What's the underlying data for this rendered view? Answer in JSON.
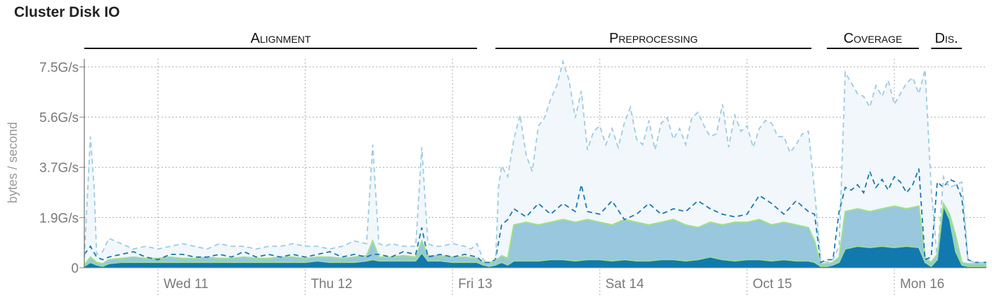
{
  "title": "Cluster Disk IO",
  "colors": {
    "p95_line": "#9dcbe2",
    "p95_fill": "#f1f7fb",
    "p75_line": "#1a78ae",
    "p75_fill": "#98c7de",
    "median_line": "#9ee08a",
    "p25_fill": "#1279ae"
  },
  "chart_data": {
    "type": "area",
    "ylabel": "bytes / second",
    "y_ticks": [
      "0",
      "1.9G/s",
      "3.7G/s",
      "5.6G/s",
      "7.5G/s"
    ],
    "y_tick_values": [
      0,
      1.875,
      3.75,
      5.625,
      7.5
    ],
    "ylim": [
      0,
      7.8
    ],
    "x_range_hours": [
      0,
      147
    ],
    "x_ticks": [
      "Wed 11",
      "Thu 12",
      "Fri 13",
      "Sat 14",
      "Oct 15",
      "Mon 16"
    ],
    "x_tick_hours": [
      12,
      36,
      60,
      84,
      108,
      132
    ],
    "grid": true,
    "phases": [
      {
        "label": "Alignment",
        "start_hour": 0,
        "end_hour": 64
      },
      {
        "label": "Preprocessing",
        "start_hour": 67,
        "end_hour": 118.5
      },
      {
        "label": "Coverage",
        "start_hour": 121,
        "end_hour": 136
      },
      {
        "label": "Dis.",
        "start_hour": 138,
        "end_hour": 143
      }
    ],
    "series": [
      {
        "x": [
          0,
          1,
          1.6,
          2,
          3,
          4,
          6,
          8,
          10,
          12,
          14,
          16,
          18,
          20,
          22,
          24,
          26,
          28,
          30,
          32,
          34,
          36,
          38,
          40,
          42,
          44,
          46,
          47,
          48,
          49,
          50,
          52,
          54,
          55,
          56,
          57,
          58,
          60,
          62,
          63,
          64,
          65,
          66,
          67,
          67.5,
          68,
          69,
          70,
          71,
          72,
          73,
          74,
          75,
          76,
          77,
          78,
          79,
          80,
          81,
          82,
          83,
          84,
          85,
          86,
          87,
          88,
          89,
          90,
          91,
          92,
          93,
          94,
          95,
          96,
          97,
          98,
          99,
          100,
          101,
          102,
          103,
          104,
          105,
          106,
          107,
          108,
          109,
          110,
          111,
          112,
          113,
          114,
          115,
          116,
          117,
          118,
          119,
          120,
          121,
          122,
          123,
          124,
          125,
          126,
          127,
          128,
          129,
          130,
          131,
          132,
          133,
          134,
          135,
          136,
          137,
          138,
          139,
          140,
          141,
          142,
          143,
          144,
          145,
          146,
          147
        ],
        "values": [
          0.4,
          4.9,
          3.0,
          0.5,
          0.6,
          1.1,
          0.9,
          0.7,
          0.8,
          0.7,
          0.8,
          0.9,
          0.8,
          0.7,
          0.9,
          0.8,
          0.8,
          0.7,
          0.8,
          0.8,
          0.9,
          0.8,
          0.8,
          0.7,
          0.8,
          1.0,
          0.9,
          4.6,
          0.9,
          0.8,
          0.9,
          0.8,
          0.8,
          4.5,
          0.9,
          0.8,
          0.8,
          0.9,
          0.8,
          0.7,
          0.9,
          0.3,
          0.1,
          0.1,
          3.0,
          3.8,
          3.4,
          4.8,
          5.7,
          4.2,
          3.6,
          5.3,
          5.6,
          6.3,
          6.8,
          7.7,
          7.0,
          5.6,
          6.6,
          4.4,
          5.1,
          5.3,
          4.6,
          5.2,
          4.5,
          5.4,
          6.0,
          4.8,
          4.6,
          5.5,
          4.4,
          5.4,
          5.6,
          4.8,
          5.2,
          4.6,
          5.6,
          5.8,
          5.3,
          4.9,
          5.0,
          6.1,
          4.5,
          5.7,
          5.1,
          5.3,
          4.5,
          5.2,
          5.5,
          5.4,
          4.9,
          4.9,
          4.3,
          4.6,
          5.0,
          5.1,
          2.9,
          0.3,
          0.2,
          0.3,
          0.8,
          7.3,
          6.9,
          6.5,
          6.4,
          6.0,
          6.8,
          6.4,
          7.0,
          6.1,
          6.5,
          6.9,
          7.1,
          6.5,
          7.4,
          3.0,
          0.3,
          3.4,
          3.0,
          3.1,
          3.2,
          0.3,
          0.2,
          0.2,
          0.2
        ]
      },
      {
        "x": [
          0,
          1,
          2,
          3,
          4,
          6,
          8,
          10,
          12,
          14,
          16,
          18,
          20,
          22,
          24,
          26,
          28,
          30,
          32,
          34,
          36,
          38,
          40,
          42,
          44,
          46,
          47,
          48,
          50,
          52,
          54,
          55,
          56,
          58,
          60,
          62,
          64,
          65,
          66,
          67,
          68,
          69,
          70,
          72,
          74,
          76,
          78,
          80,
          81,
          82,
          84,
          86,
          88,
          90,
          92,
          94,
          96,
          98,
          100,
          102,
          104,
          106,
          108,
          110,
          112,
          114,
          116,
          118,
          119,
          120,
          121,
          122,
          123,
          124,
          125,
          126,
          127,
          128,
          129,
          130,
          131,
          132,
          133,
          134,
          135,
          136,
          137,
          138,
          139,
          140,
          141,
          142,
          143,
          144,
          145,
          146,
          147
        ],
        "values": [
          0.5,
          0.8,
          0.4,
          0.3,
          0.4,
          0.5,
          0.6,
          0.4,
          0.3,
          0.5,
          0.5,
          0.4,
          0.4,
          0.5,
          0.4,
          0.6,
          0.4,
          0.5,
          0.4,
          0.5,
          0.4,
          0.5,
          0.6,
          0.4,
          0.5,
          0.4,
          0.5,
          0.5,
          0.4,
          0.6,
          0.5,
          1.5,
          0.4,
          0.5,
          0.4,
          0.5,
          0.4,
          0.2,
          0.2,
          0.3,
          1.6,
          1.8,
          2.2,
          1.9,
          2.4,
          2.0,
          2.4,
          2.1,
          3.1,
          2.1,
          2.0,
          2.5,
          1.8,
          2.0,
          2.4,
          2.0,
          2.2,
          2.1,
          2.5,
          2.2,
          2.0,
          1.9,
          2.0,
          2.7,
          2.4,
          2.0,
          2.5,
          2.1,
          2.0,
          0.2,
          0.3,
          0.3,
          2.1,
          3.0,
          2.9,
          3.1,
          2.8,
          3.6,
          3.0,
          3.3,
          2.9,
          3.4,
          3.2,
          2.8,
          3.1,
          3.7,
          0.3,
          0.4,
          3.2,
          3.0,
          3.3,
          3.2,
          2.6,
          0.3,
          0.2,
          0.2,
          0.2
        ]
      },
      {
        "x": [
          0,
          1,
          2,
          3,
          4,
          6,
          8,
          10,
          12,
          14,
          16,
          18,
          20,
          22,
          24,
          26,
          28,
          30,
          32,
          34,
          36,
          38,
          40,
          42,
          44,
          46,
          47,
          48,
          50,
          52,
          54,
          55,
          56,
          58,
          60,
          62,
          64,
          65,
          66,
          67,
          68,
          69,
          70,
          72,
          74,
          76,
          78,
          80,
          82,
          84,
          86,
          88,
          90,
          92,
          94,
          96,
          98,
          100,
          102,
          104,
          106,
          108,
          110,
          112,
          114,
          116,
          118,
          119,
          120,
          121,
          122,
          123,
          124,
          126,
          128,
          130,
          132,
          134,
          136,
          137,
          138,
          139,
          140,
          141,
          142,
          143,
          144,
          145,
          146,
          147
        ],
        "values": [
          0.1,
          0.4,
          0.2,
          0.15,
          0.3,
          0.35,
          0.4,
          0.35,
          0.35,
          0.4,
          0.35,
          0.35,
          0.4,
          0.35,
          0.35,
          0.4,
          0.35,
          0.35,
          0.4,
          0.4,
          0.35,
          0.4,
          0.4,
          0.35,
          0.4,
          0.45,
          1.0,
          0.4,
          0.4,
          0.45,
          0.4,
          1.0,
          0.45,
          0.45,
          0.4,
          0.4,
          0.35,
          0.2,
          0.2,
          0.25,
          0.45,
          0.35,
          1.6,
          1.7,
          1.6,
          1.7,
          1.8,
          1.7,
          1.8,
          1.7,
          1.6,
          1.8,
          1.7,
          1.6,
          1.7,
          1.8,
          1.6,
          1.5,
          1.7,
          1.6,
          1.7,
          1.7,
          1.8,
          1.6,
          1.7,
          1.6,
          1.5,
          1.0,
          0.15,
          0.15,
          0.2,
          0.4,
          2.1,
          2.2,
          2.1,
          2.2,
          2.3,
          2.2,
          2.3,
          0.4,
          0.2,
          0.5,
          2.4,
          2.0,
          1.2,
          0.2,
          0.15,
          0.15,
          0.15,
          0.15
        ]
      },
      {
        "x": [
          0,
          1,
          2,
          3,
          4,
          6,
          8,
          10,
          12,
          14,
          16,
          18,
          20,
          22,
          24,
          26,
          28,
          30,
          32,
          34,
          36,
          38,
          40,
          42,
          44,
          46,
          47,
          48,
          50,
          52,
          54,
          55,
          56,
          58,
          60,
          62,
          64,
          65,
          66,
          67,
          68,
          69,
          70,
          72,
          74,
          76,
          78,
          80,
          82,
          84,
          86,
          88,
          90,
          92,
          94,
          96,
          98,
          100,
          102,
          104,
          106,
          108,
          110,
          112,
          114,
          116,
          118,
          119,
          120,
          121,
          122,
          123,
          124,
          126,
          128,
          130,
          132,
          134,
          136,
          137,
          138,
          139,
          140,
          141,
          142,
          143,
          144,
          145,
          146,
          147
        ],
        "values": [
          0.05,
          0.2,
          0.1,
          0.05,
          0.15,
          0.2,
          0.2,
          0.2,
          0.2,
          0.2,
          0.2,
          0.2,
          0.2,
          0.2,
          0.2,
          0.2,
          0.2,
          0.2,
          0.2,
          0.2,
          0.2,
          0.25,
          0.2,
          0.2,
          0.2,
          0.25,
          0.3,
          0.25,
          0.25,
          0.25,
          0.25,
          0.55,
          0.25,
          0.25,
          0.2,
          0.2,
          0.2,
          0.1,
          0.05,
          0.1,
          0.2,
          0.1,
          0.25,
          0.25,
          0.25,
          0.3,
          0.3,
          0.25,
          0.3,
          0.3,
          0.25,
          0.3,
          0.25,
          0.25,
          0.3,
          0.3,
          0.25,
          0.3,
          0.4,
          0.3,
          0.25,
          0.3,
          0.3,
          0.25,
          0.3,
          0.25,
          0.25,
          0.2,
          0.05,
          0.05,
          0.1,
          0.2,
          0.7,
          0.8,
          0.75,
          0.8,
          0.75,
          0.8,
          0.75,
          0.2,
          0.05,
          0.3,
          2.3,
          1.8,
          0.6,
          0.1,
          0.05,
          0.05,
          0.05,
          0.05
        ]
      }
    ]
  }
}
